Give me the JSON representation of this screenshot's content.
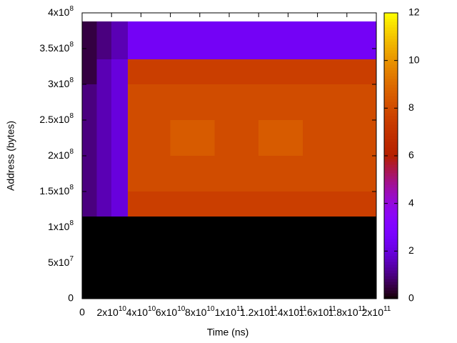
{
  "chart_data": {
    "type": "heatmap",
    "x_label": "Time (ns)",
    "y_label": "Address (bytes)",
    "x": [
      0,
      10000000000,
      20000000000,
      31000000000,
      60000000000,
      90000000000,
      120000000000,
      150000000000,
      180000000000,
      200000000000
    ],
    "y": [
      0,
      115000000,
      150000000,
      200000000,
      250000000,
      300000000,
      335000000,
      388000000
    ],
    "z": [
      [
        0,
        0,
        0,
        0,
        0,
        0,
        0,
        0,
        0
      ],
      [
        1,
        1.5,
        2,
        7.5,
        7.5,
        7.5,
        7.5,
        7.5,
        7.5
      ],
      [
        1,
        1.5,
        2,
        8,
        8,
        8,
        8,
        8,
        8
      ],
      [
        1,
        1.5,
        2,
        8,
        8.5,
        8,
        8.5,
        8,
        8
      ],
      [
        1,
        1.5,
        2,
        8,
        8,
        8,
        8,
        8,
        8
      ],
      [
        0.5,
        1.5,
        2,
        7.5,
        7.5,
        7.5,
        7.5,
        7.5,
        7.5
      ],
      [
        0.5,
        1,
        1.5,
        2.5,
        2.5,
        2.5,
        2.5,
        2.5,
        2.5
      ]
    ],
    "xlim": [
      0,
      200000000000
    ],
    "ylim": [
      0,
      400000000
    ],
    "zlim": [
      0,
      12
    ],
    "xticks": [
      0,
      {
        "value": 20000000000,
        "label": "2x10",
        "sup": "10"
      },
      {
        "value": 40000000000,
        "label": "4x10",
        "sup": "10"
      },
      {
        "value": 60000000000,
        "label": "6x10",
        "sup": "10"
      },
      {
        "value": 80000000000,
        "label": "8x10",
        "sup": "10"
      },
      {
        "value": 100000000000,
        "label": "1x10",
        "sup": "11"
      },
      {
        "value": 120000000000,
        "label": "1.2x10",
        "sup": "11"
      },
      {
        "value": 140000000000,
        "label": "1.4x10",
        "sup": "11"
      },
      {
        "value": 160000000000,
        "label": "1.6x10",
        "sup": "11"
      },
      {
        "value": 180000000000,
        "label": "1.8x10",
        "sup": "11"
      },
      {
        "value": 200000000000,
        "label": "2x10",
        "sup": "11"
      }
    ],
    "yticks": [
      0,
      {
        "value": 50000000,
        "label": "5x10",
        "sup": "7"
      },
      {
        "value": 100000000,
        "label": "1x10",
        "sup": "8"
      },
      {
        "value": 150000000,
        "label": "1.5x10",
        "sup": "8"
      },
      {
        "value": 200000000,
        "label": "2x10",
        "sup": "8"
      },
      {
        "value": 250000000,
        "label": "2.5x10",
        "sup": "8"
      },
      {
        "value": 300000000,
        "label": "3x10",
        "sup": "8"
      },
      {
        "value": 350000000,
        "label": "3.5x10",
        "sup": "8"
      },
      {
        "value": 400000000,
        "label": "4x10",
        "sup": "8"
      }
    ],
    "zticks": [
      0,
      2,
      4,
      6,
      8,
      10,
      12
    ]
  }
}
